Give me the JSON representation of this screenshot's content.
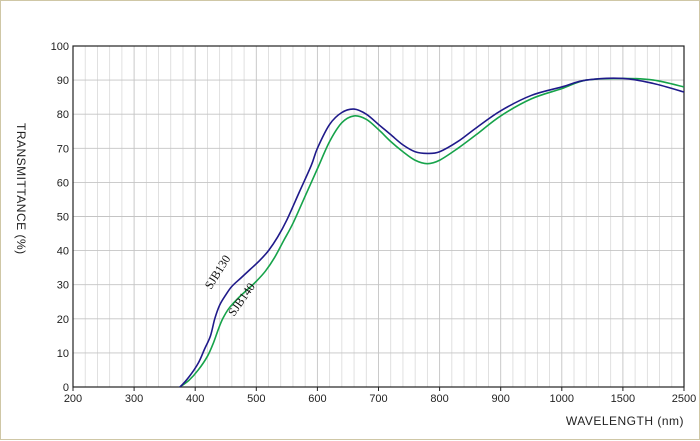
{
  "chart_data": {
    "type": "line",
    "title": "",
    "xlabel": "WAVELENGTH (nm)",
    "ylabel": "TRANSMITTANCE    (%)",
    "x_ticks": [
      "200",
      "300",
      "400",
      "500",
      "600",
      "700",
      "800",
      "900",
      "1000",
      "1500",
      "2500"
    ],
    "y_ticks": [
      "0",
      "10",
      "20",
      "30",
      "40",
      "50",
      "60",
      "70",
      "80",
      "90",
      "100"
    ],
    "ylim": [
      0,
      100
    ],
    "grid": true,
    "colors": {
      "SJB130": "#1f1a8a",
      "SJB140": "#16a34a",
      "grid": "#d9d9d9",
      "axis": "#222222",
      "frame": "#cfc7a6"
    },
    "series": [
      {
        "name": "SJB130",
        "x": [
          360,
          375,
          390,
          405,
          415,
          425,
          432,
          440,
          450,
          460,
          475,
          490,
          505,
          520,
          535,
          550,
          570,
          590,
          600,
          620,
          640,
          660,
          680,
          700,
          720,
          740,
          760,
          780,
          800,
          830,
          860,
          900,
          950,
          1000,
          1200,
          1500,
          2000,
          2500
        ],
        "y": [
          -2,
          0,
          3,
          7,
          11,
          15,
          20,
          24,
          27,
          29.5,
          32,
          34.5,
          37,
          40,
          44,
          49,
          57,
          65,
          70,
          77,
          80.5,
          81.5,
          80,
          77,
          74,
          71,
          69,
          68.5,
          69,
          72,
          76,
          81,
          85.5,
          88,
          90,
          90.5,
          89,
          86.5
        ]
      },
      {
        "name": "SJB140",
        "x": [
          360,
          375,
          390,
          405,
          420,
          430,
          438,
          445,
          455,
          470,
          485,
          500,
          515,
          530,
          545,
          560,
          580,
          600,
          620,
          640,
          660,
          680,
          700,
          720,
          740,
          760,
          780,
          800,
          830,
          860,
          900,
          950,
          1000,
          1200,
          1500,
          2000,
          2500
        ],
        "y": [
          -2,
          0,
          2,
          5,
          9,
          13,
          17,
          20,
          23,
          26,
          28.5,
          31,
          34,
          38,
          43,
          48,
          56,
          64,
          72,
          77.5,
          79.5,
          78.5,
          75.5,
          72,
          69,
          66.5,
          65.5,
          66.5,
          70,
          74,
          79.5,
          84.5,
          87.5,
          90,
          90.5,
          90,
          88
        ]
      }
    ],
    "series_label_texts": [
      "SJB130",
      "SJB140"
    ]
  }
}
